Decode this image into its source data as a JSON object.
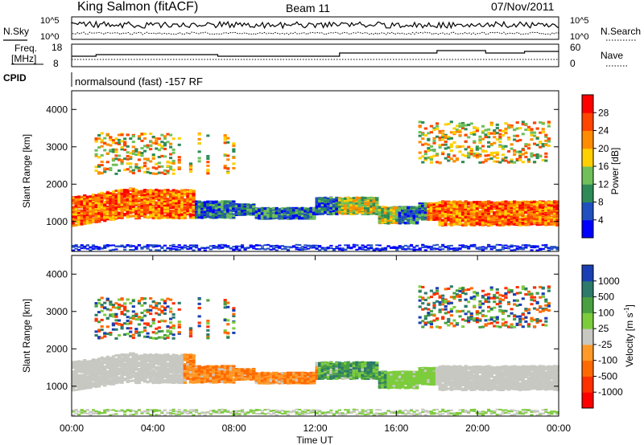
{
  "header": {
    "station": "King Salmon (fitACF)",
    "beam": "Beam 11",
    "date": "07/Nov/2011",
    "program": "normalsound (fast) -157 RF"
  },
  "strip1": {
    "left_label": "N.Sky",
    "right_label": "N.Search",
    "left_ticks": [
      "10^5",
      "10^0"
    ],
    "right_ticks": [
      "10^5",
      "10^0"
    ]
  },
  "strip2": {
    "left_label_1": "Freq.",
    "left_label_2": "[MHz]",
    "right_label": "Nave",
    "left_ticks": [
      "18",
      "8"
    ],
    "right_ticks": [
      "60",
      "0"
    ]
  },
  "cpid_label": "CPID",
  "colors": {
    "scatter_gray": "#c8c8c2"
  },
  "chart_data": [
    {
      "type": "heatmap",
      "name": "power",
      "ylabel": "Slant Range [km]",
      "xlabel": "",
      "y_ticks": [
        "1000",
        "2000",
        "3000",
        "4000"
      ],
      "ylim": [
        200,
        4500
      ],
      "xlim_hours": [
        0,
        24
      ],
      "colorbar": {
        "label": "Power [dB]",
        "ticks": [
          "4",
          "8",
          "12",
          "16",
          "20",
          "24",
          "28"
        ],
        "range": [
          0,
          30
        ],
        "colors": [
          "#0000ff",
          "#2050c0",
          "#2e8b57",
          "#6fc05a",
          "#ffd000",
          "#ff8c00",
          "#ff4500",
          "#ff0000"
        ]
      }
    },
    {
      "type": "heatmap",
      "name": "velocity",
      "ylabel": "Slant Range [km]",
      "xlabel": "Time UT",
      "y_ticks": [
        "1000",
        "2000",
        "3000",
        "4000"
      ],
      "ylim": [
        200,
        4500
      ],
      "xlim_hours": [
        0,
        24
      ],
      "x_ticks": [
        "00:00",
        "04:00",
        "08:00",
        "12:00",
        "16:00",
        "20:00",
        "00:00"
      ],
      "colorbar": {
        "label": "Velocity [m s-1]",
        "ticks": [
          "1000",
          "500",
          "100",
          "25",
          "-25",
          "-100",
          "-500",
          "-1000"
        ],
        "colors": [
          "#1a3fb4",
          "#2d7a6a",
          "#48a040",
          "#7ccc3c",
          "#c8c8c2",
          "#ff9a28",
          "#ff6a00",
          "#ff3000",
          "#ff0000"
        ]
      }
    }
  ]
}
